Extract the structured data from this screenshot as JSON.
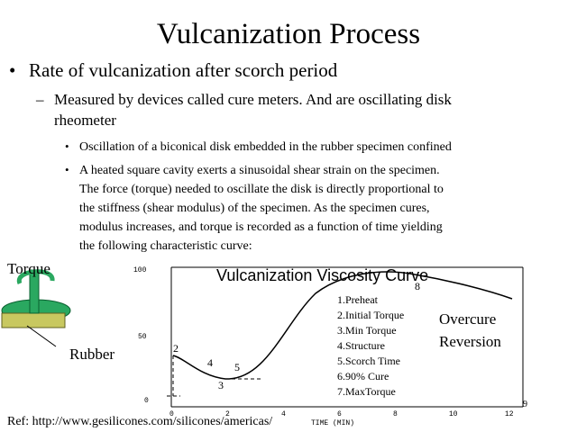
{
  "title": "Vulcanization Process",
  "bullet": "Rate of vulcanization after scorch period",
  "sub_bullet": {
    "line1": "Measured by devices called cure meters. And are oscillating disk",
    "line2": "rheometer"
  },
  "points": [
    {
      "lines": [
        "Oscillation of a biconical disk embedded in the rubber specimen confined"
      ]
    },
    {
      "lines": [
        "A heated square cavity exerts a sinusoidal shear strain on the specimen.",
        "The force (torque) needed to oscillate the disk is directly proportional to",
        "the stiffness (shear modulus) of the specimen. As the specimen cures,",
        "modulus increases, and torque is recorded as a function of time yielding",
        "the following characteristic curve:"
      ]
    }
  ],
  "figure": {
    "title": "Vulcanization Viscosity Curve",
    "yticks": [
      "100",
      "50",
      "0"
    ],
    "xticks": [
      "0",
      "2",
      "4",
      "6",
      "8",
      "10",
      "12"
    ],
    "xlabel": "TIME (MIN)",
    "stages": [
      "1.Preheat",
      "2.Initial Torque",
      "3.Min Torque",
      "4.Structure",
      "5.Scorch Time",
      "6.90% Cure",
      "7.MaxTorque"
    ],
    "curve_marks": [
      "2",
      "4",
      "5",
      "3",
      "8"
    ],
    "overcure": "Overcure",
    "reversion": "Reversion",
    "torque": "Torque",
    "rubber": "Rubber"
  },
  "ref": "Ref: http://www.gesilicones.com/silicones/americas/",
  "page_number": "9"
}
